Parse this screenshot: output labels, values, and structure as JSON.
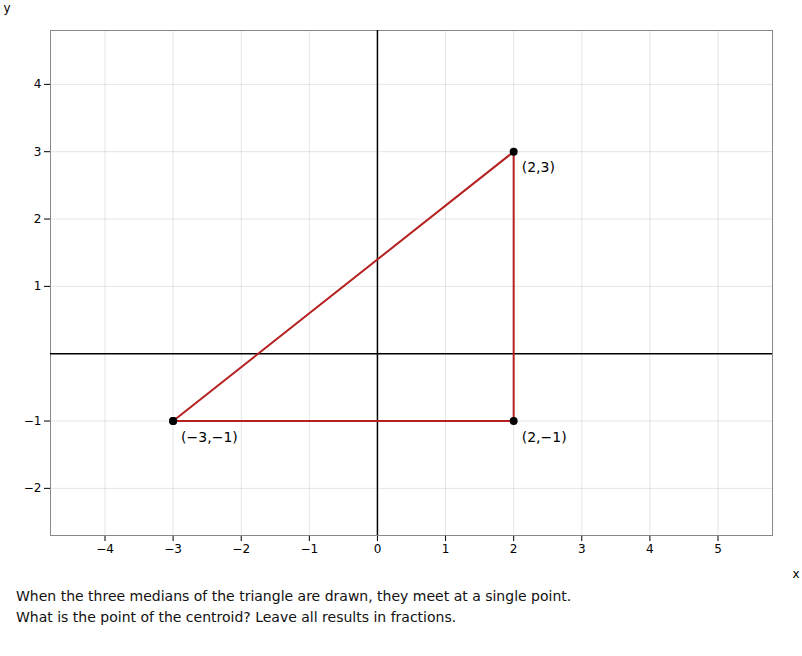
{
  "chart_data": {
    "type": "line",
    "x": [
      -3,
      2,
      2,
      -3
    ],
    "values": [
      -1,
      3,
      -1,
      -1
    ],
    "color": "#b52020",
    "marker": "circle",
    "xlabel": "x",
    "ylabel": "y",
    "xlim": [
      -4.8,
      5.8
    ],
    "ylim": [
      -2.7,
      4.8
    ],
    "xticks": [
      -4,
      -3,
      -2,
      -1,
      0,
      1,
      2,
      3,
      4,
      5
    ],
    "yticks": [
      -2,
      -1,
      1,
      2,
      3,
      4
    ],
    "grid": true,
    "annotations": [
      {
        "text": "(−3,−1)",
        "x": -3,
        "y": -1
      },
      {
        "text": "(2,3)",
        "x": 2,
        "y": 3
      },
      {
        "text": "(2,−1)",
        "x": 2,
        "y": -1
      }
    ],
    "caption": [
      "When the three medians of the triangle are drawn, they meet at a single point.",
      "What is the point of the centroid? Leave all results in fractions."
    ]
  }
}
